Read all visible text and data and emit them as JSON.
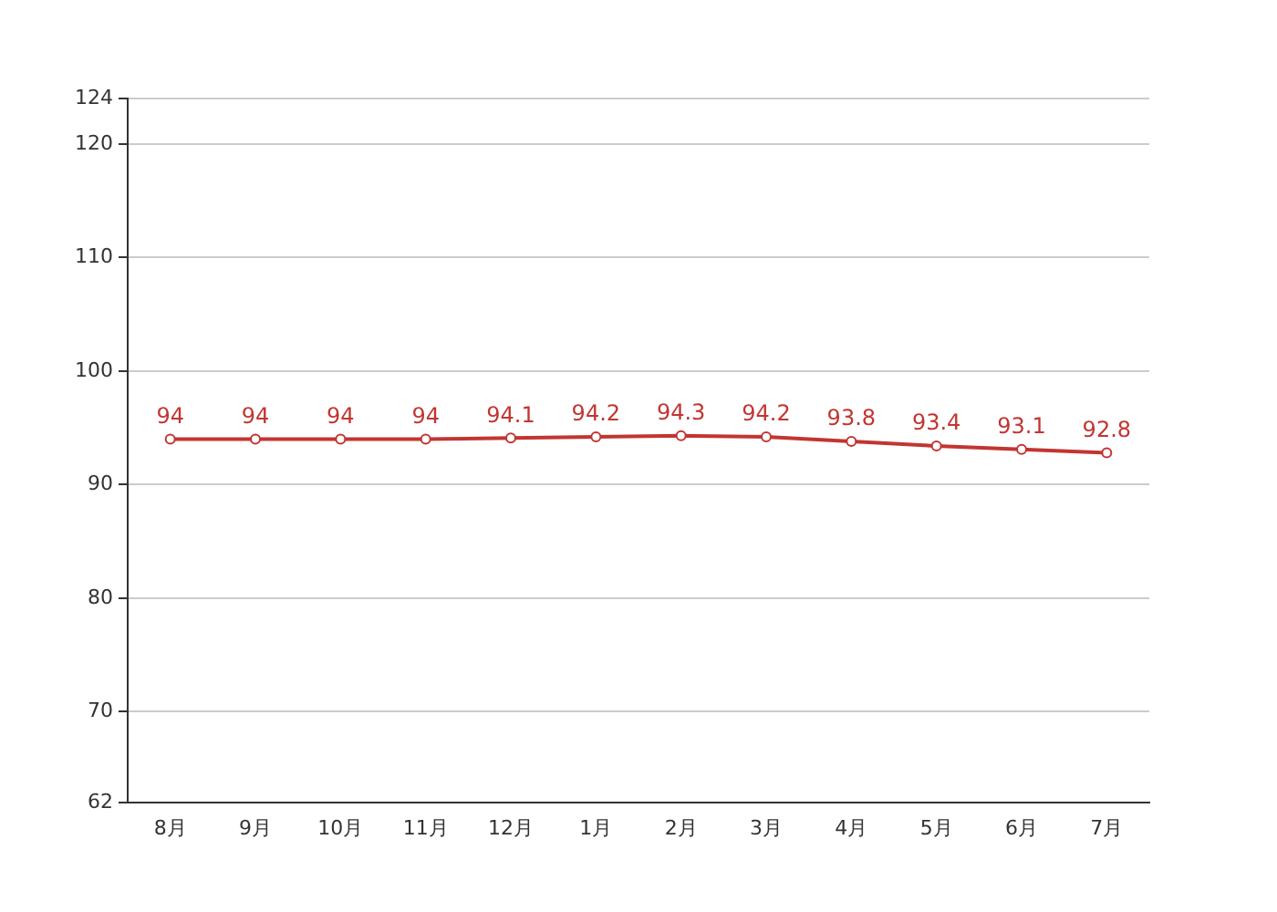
{
  "chart_data": {
    "type": "line",
    "categories": [
      "8月",
      "9月",
      "10月",
      "11月",
      "12月",
      "1月",
      "2月",
      "3月",
      "4月",
      "5月",
      "6月",
      "7月"
    ],
    "series": [
      {
        "color": "#c23531",
        "values": [
          94,
          94,
          94,
          94,
          94.1,
          94.2,
          94.3,
          94.2,
          93.8,
          93.4,
          93.1,
          92.8
        ]
      }
    ],
    "ylim": [
      62,
      124
    ],
    "yticks": [
      62,
      70,
      80,
      90,
      100,
      110,
      120,
      124
    ],
    "grid": "y",
    "legend": false,
    "marker": "circle",
    "line_style": "solid",
    "data_labels": true
  }
}
